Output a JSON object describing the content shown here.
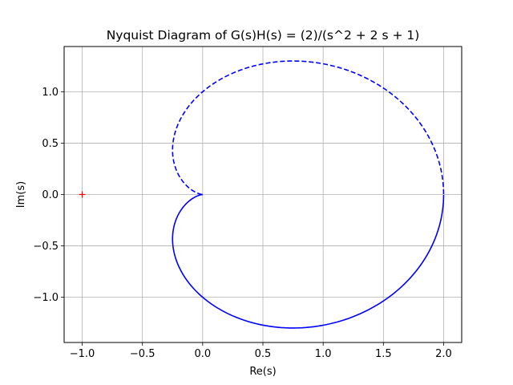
{
  "chart_data": {
    "type": "line",
    "title": "Nyquist Diagram of G(s)H(s) = (2)/(s^2 + 2 s + 1)",
    "xlabel": "Re(s)",
    "ylabel": "Im(s)",
    "xlim": [
      -1.15,
      2.15
    ],
    "ylim": [
      -1.44,
      1.44
    ],
    "x_ticks": [
      -1.0,
      -0.5,
      0.0,
      0.5,
      1.0,
      1.5,
      2.0
    ],
    "x_tick_labels": [
      "−1.0",
      "−0.5",
      "0.0",
      "0.5",
      "1.0",
      "1.5",
      "2.0"
    ],
    "y_ticks": [
      -1.0,
      -0.5,
      0.0,
      0.5,
      1.0
    ],
    "y_tick_labels": [
      "−1.0",
      "−0.5",
      "0.0",
      "0.5",
      "1.0"
    ],
    "grid": true,
    "transfer_function": {
      "numerator": [
        2
      ],
      "denominator": [
        1,
        2,
        1
      ]
    },
    "series": [
      {
        "style": "solid",
        "color": "#0000ff",
        "frequency_sign": "positive"
      },
      {
        "style": "dashed",
        "color": "#0000ff",
        "frequency_sign": "negative"
      }
    ],
    "critical_point": {
      "x": -1,
      "y": 0,
      "marker": "+",
      "color": "#ff0000"
    }
  }
}
